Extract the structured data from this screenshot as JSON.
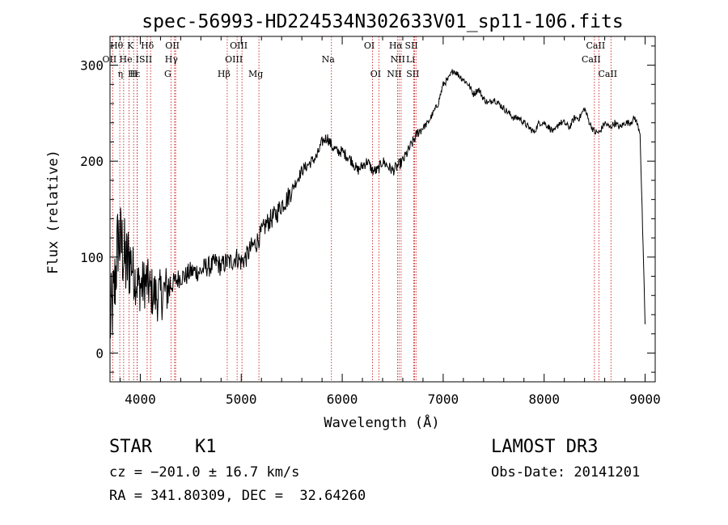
{
  "chart_data": {
    "type": "line",
    "title": "spec-56993-HD224534N302633V01_sp11-106.fits",
    "xlabel": "Wavelength (Å)",
    "ylabel": "Flux (relative)",
    "xlim": [
      3700,
      9100
    ],
    "ylim": [
      -30,
      330
    ],
    "xticks": [
      4000,
      5000,
      6000,
      7000,
      8000,
      9000
    ],
    "yticks": [
      0,
      100,
      200,
      300
    ],
    "x_tick_labels": [
      "4000",
      "5000",
      "6000",
      "7000",
      "8000",
      "9000"
    ],
    "y_tick_labels": [
      "0",
      "100",
      "200",
      "300"
    ],
    "grid": false,
    "series": [
      {
        "x": [
          3700,
          3740,
          3780,
          3820,
          3860,
          3900,
          3940,
          3980,
          4020,
          4060,
          4100,
          4150,
          4200,
          4250,
          4300,
          4350,
          4400,
          4450,
          4500,
          4550,
          4600,
          4650,
          4700,
          4750,
          4800,
          4850,
          4900,
          4950,
          5000,
          5050,
          5100,
          5150,
          5200,
          5250,
          5300,
          5350,
          5400,
          5450,
          5500,
          5550,
          5600,
          5650,
          5700,
          5750,
          5800,
          5850,
          5900,
          5950,
          6000,
          6050,
          6100,
          6150,
          6200,
          6250,
          6300,
          6350,
          6400,
          6450,
          6500,
          6550,
          6600,
          6650,
          6700,
          6750,
          6800,
          6850,
          6900,
          6950,
          7000,
          7050,
          7100,
          7150,
          7200,
          7250,
          7300,
          7350,
          7400,
          7450,
          7500,
          7550,
          7600,
          7650,
          7700,
          7750,
          7800,
          7850,
          7900,
          7950,
          8000,
          8050,
          8100,
          8150,
          8200,
          8250,
          8300,
          8350,
          8400,
          8450,
          8500,
          8550,
          8600,
          8650,
          8700,
          8750,
          8800,
          8850,
          8900,
          8950,
          9000
        ],
        "values": [
          30,
          60,
          120,
          110,
          90,
          100,
          80,
          70,
          70,
          75,
          65,
          60,
          60,
          65,
          70,
          75,
          80,
          80,
          85,
          85,
          85,
          90,
          90,
          95,
          90,
          95,
          95,
          100,
          95,
          100,
          110,
          115,
          125,
          135,
          140,
          145,
          155,
          160,
          170,
          180,
          190,
          195,
          200,
          205,
          220,
          225,
          215,
          210,
          210,
          205,
          200,
          190,
          195,
          200,
          190,
          190,
          200,
          195,
          190,
          195,
          200,
          210,
          220,
          230,
          235,
          240,
          250,
          260,
          280,
          285,
          295,
          290,
          285,
          280,
          270,
          275,
          265,
          260,
          265,
          260,
          255,
          250,
          245,
          245,
          240,
          235,
          230,
          240,
          240,
          235,
          230,
          240,
          240,
          235,
          245,
          245,
          255,
          240,
          230,
          230,
          240,
          235,
          240,
          235,
          240,
          240,
          245,
          230,
          30
        ]
      }
    ],
    "line_markers": [
      {
        "label": "Hθ",
        "wave": 3797,
        "row": 0
      },
      {
        "label": "K",
        "wave": 3934,
        "row": 0
      },
      {
        "label": "Hδ",
        "wave": 4102,
        "row": 0
      },
      {
        "label": "OII",
        "wave": 4350,
        "row": 0
      },
      {
        "label": "OIII",
        "wave": 5007,
        "row": 0
      },
      {
        "label": "OI",
        "wave": 6300,
        "row": 0
      },
      {
        "label": "Hα",
        "wave": 6563,
        "row": 0
      },
      {
        "label": "SII",
        "wave": 6717,
        "row": 0
      },
      {
        "label": "CaII",
        "wave": 8542,
        "row": 0
      },
      {
        "label": "OII",
        "wave": 3727,
        "row": 1
      },
      {
        "label": "He",
        "wave": 3889,
        "row": 1
      },
      {
        "label": "ISII",
        "wave": 4068,
        "row": 1
      },
      {
        "label": "Hγ",
        "wave": 4340,
        "row": 1
      },
      {
        "label": "OIII",
        "wave": 4959,
        "row": 1
      },
      {
        "label": "Na",
        "wave": 5893,
        "row": 1
      },
      {
        "label": "NII",
        "wave": 6583,
        "row": 1
      },
      {
        "label": "Li",
        "wave": 6708,
        "row": 1
      },
      {
        "label": "CaII",
        "wave": 8498,
        "row": 1
      },
      {
        "label": "Hε",
        "wave": 3970,
        "row": 2
      },
      {
        "label": "η",
        "wave": 3835,
        "row": 2
      },
      {
        "label": "H",
        "wave": 3968,
        "row": 2
      },
      {
        "label": "G",
        "wave": 4304,
        "row": 2
      },
      {
        "label": "Hβ",
        "wave": 4861,
        "row": 2
      },
      {
        "label": "Mg",
        "wave": 5175,
        "row": 2
      },
      {
        "label": "OI",
        "wave": 6363,
        "row": 2
      },
      {
        "label": "NII",
        "wave": 6548,
        "row": 2
      },
      {
        "label": "SII",
        "wave": 6731,
        "row": 2
      },
      {
        "label": "CaII",
        "wave": 8662,
        "row": 2
      }
    ]
  },
  "info": {
    "star_class": "STAR    K1",
    "cz": "cz = −201.0 ± 16.7 km/s",
    "radec": "RA = 341.80309, DEC =  32.64260",
    "survey": "LAMOST DR3",
    "obs_date": "Obs-Date: 20141201"
  }
}
